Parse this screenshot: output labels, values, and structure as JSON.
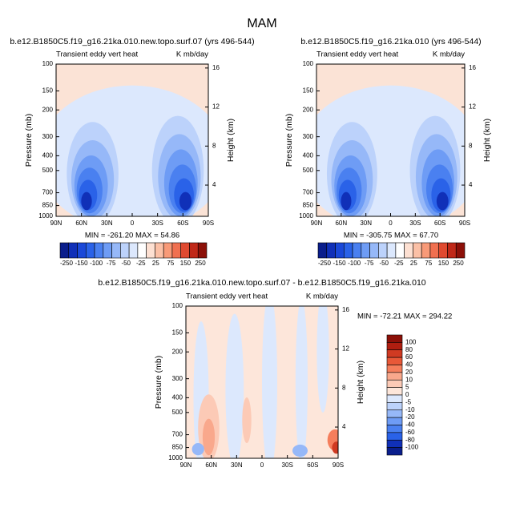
{
  "title": "MAM",
  "chart_data": [
    {
      "type": "contour",
      "title": "b.e12.B1850C5.f19_g16.21ka.010.new.topo.surf.07 (yrs 496-544)",
      "left_label": "Transient eddy vert heat",
      "right_label": "K mb/day",
      "ylabel": "Pressure (mb)",
      "y2label": "Height (km)",
      "stats": "MIN = -261.20   MAX = 54.86",
      "xlim": [
        90,
        -90
      ],
      "xticks": [
        {
          "value": 90,
          "label": "90N"
        },
        {
          "value": 60,
          "label": "60N"
        },
        {
          "value": 30,
          "label": "30N"
        },
        0,
        {
          "value": -30,
          "label": "30S"
        },
        {
          "value": -60,
          "label": "60S"
        },
        {
          "value": -90,
          "label": "90S"
        }
      ],
      "ylim": [
        1000,
        100
      ],
      "ylog": true,
      "yticks": [
        100,
        150,
        200,
        300,
        400,
        500,
        700,
        850,
        1000
      ],
      "y2lim": [
        0.8,
        16.4
      ],
      "y2ticks": [
        4,
        8,
        12,
        16
      ],
      "colorbar": {
        "orientation": "horizontal",
        "levels": [
          -250,
          -150,
          -100,
          -75,
          -50,
          -25,
          25,
          75,
          150,
          250
        ],
        "colors": [
          "#0a1e8c",
          "#1030b8",
          "#1a48d8",
          "#2a62e8",
          "#4a80f0",
          "#6e9cf5",
          "#96b8f8",
          "#bcd2fb",
          "#dce8fd",
          "#ffffff",
          "#fde0d2",
          "#fbc0a6",
          "#f89a78",
          "#f07050",
          "#e04a30",
          "#c02818",
          "#8c1008"
        ]
      }
    },
    {
      "type": "contour",
      "title": "b.e12.B1850C5.f19_g16.21ka.010 (yrs 496-544)",
      "left_label": "Transient eddy vert heat",
      "right_label": "K mb/day",
      "ylabel": "Pressure (mb)",
      "y2label": "Height (km)",
      "stats": "MIN = -305.75   MAX = 67.70",
      "xlim": [
        90,
        -90
      ],
      "xticks": [
        {
          "value": 90,
          "label": "90N"
        },
        {
          "value": 60,
          "label": "60N"
        },
        {
          "value": 30,
          "label": "30N"
        },
        0,
        {
          "value": -30,
          "label": "30S"
        },
        {
          "value": -60,
          "label": "60S"
        },
        {
          "value": -90,
          "label": "90S"
        }
      ],
      "ylim": [
        1000,
        100
      ],
      "ylog": true,
      "yticks": [
        100,
        150,
        200,
        300,
        400,
        500,
        700,
        850,
        1000
      ],
      "y2lim": [
        0.8,
        16.4
      ],
      "y2ticks": [
        4,
        8,
        12,
        16
      ],
      "colorbar": {
        "orientation": "horizontal",
        "levels": [
          -250,
          -150,
          -100,
          -75,
          -50,
          -25,
          25,
          75,
          150,
          250
        ],
        "colors": [
          "#0a1e8c",
          "#1030b8",
          "#1a48d8",
          "#2a62e8",
          "#4a80f0",
          "#6e9cf5",
          "#96b8f8",
          "#bcd2fb",
          "#dce8fd",
          "#ffffff",
          "#fde0d2",
          "#fbc0a6",
          "#f89a78",
          "#f07050",
          "#e04a30",
          "#c02818",
          "#8c1008"
        ]
      }
    },
    {
      "type": "contour",
      "title": "b.e12.B1850C5.f19_g16.21ka.010.new.topo.surf.07 - b.e12.B1850C5.f19_g16.21ka.010",
      "left_label": "Transient eddy vert heat",
      "right_label": "K mb/day",
      "ylabel": "Pressure (mb)",
      "y2label": "Height (km)",
      "stats": "MIN = -72.21   MAX = 294.22",
      "xlim": [
        90,
        -90
      ],
      "xticks": [
        {
          "value": 90,
          "label": "90N"
        },
        {
          "value": 60,
          "label": "60N"
        },
        {
          "value": 30,
          "label": "30N"
        },
        0,
        {
          "value": -30,
          "label": "30S"
        },
        {
          "value": -60,
          "label": "60S"
        },
        {
          "value": -90,
          "label": "90S"
        }
      ],
      "ylim": [
        1000,
        100
      ],
      "ylog": true,
      "yticks": [
        100,
        150,
        200,
        300,
        400,
        500,
        700,
        850,
        1000
      ],
      "y2lim": [
        0.8,
        16.4
      ],
      "y2ticks": [
        4,
        8,
        12,
        16
      ],
      "colorbar": {
        "orientation": "vertical",
        "levels": [
          100,
          80,
          60,
          40,
          20,
          10,
          5,
          0,
          -5,
          -10,
          -20,
          -40,
          -60,
          -80,
          -100
        ],
        "colors": [
          "#8c1008",
          "#b01e10",
          "#d03a22",
          "#e85838",
          "#f57e5c",
          "#f9a88c",
          "#fccab6",
          "#fde6da",
          "#dce8fd",
          "#bcd2fb",
          "#96b8f8",
          "#6e9cf5",
          "#4a80f0",
          "#2a62e8",
          "#1030b8",
          "#0a1e8c"
        ]
      }
    }
  ]
}
